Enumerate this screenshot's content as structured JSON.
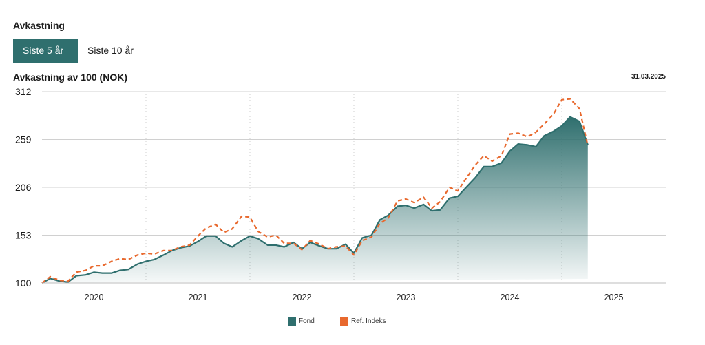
{
  "section_title": "Avkastning",
  "tabs": [
    {
      "label": "Siste 5 år",
      "active": true
    },
    {
      "label": "Siste 10 år",
      "active": false
    }
  ],
  "colors": {
    "fund": "#2f6f6e",
    "index": "#e8692e",
    "grid": "#d0d0d0"
  },
  "chart_data": {
    "type": "area",
    "title": "Avkastning av 100 (NOK)",
    "date": "31.03.2025",
    "ylim": [
      100,
      312
    ],
    "yticks": [
      "100",
      "153",
      "206",
      "259",
      "312"
    ],
    "xticks": [
      "2020",
      "2021",
      "2022",
      "2023",
      "2024",
      "2025"
    ],
    "xlim": [
      2019.5,
      2025.5
    ],
    "grid": "horizontal solid, vertical dotted",
    "legend_position": "bottom-center",
    "series": [
      {
        "name": "Fond",
        "style": "filled area, solid line",
        "x": [
          2019.5,
          2019.58,
          2019.67,
          2019.75,
          2019.83,
          2019.92,
          2020.0,
          2020.08,
          2020.17,
          2020.25,
          2020.33,
          2020.42,
          2020.5,
          2020.58,
          2020.67,
          2020.75,
          2020.83,
          2020.92,
          2021.0,
          2021.08,
          2021.17,
          2021.25,
          2021.33,
          2021.42,
          2021.5,
          2021.58,
          2021.67,
          2021.75,
          2021.83,
          2021.92,
          2022.0,
          2022.08,
          2022.17,
          2022.25,
          2022.33,
          2022.42,
          2022.5,
          2022.58,
          2022.67,
          2022.75,
          2022.83,
          2022.92,
          2023.0,
          2023.08,
          2023.17,
          2023.25,
          2023.33,
          2023.42,
          2023.5,
          2023.58,
          2023.67,
          2023.75,
          2023.83,
          2023.92,
          2024.0,
          2024.08,
          2024.17,
          2024.25,
          2024.33,
          2024.42,
          2024.5,
          2024.58,
          2024.67,
          2024.75
        ],
        "values": [
          100,
          105,
          102,
          101,
          108,
          109,
          112,
          111,
          111,
          114,
          115,
          121,
          124,
          126,
          131,
          136,
          139,
          141,
          146,
          152,
          152,
          144,
          140,
          147,
          152,
          149,
          142,
          142,
          140,
          145,
          138,
          145,
          141,
          138,
          138,
          143,
          133,
          150,
          153,
          170,
          175,
          185,
          186,
          183,
          187,
          180,
          181,
          194,
          196,
          206,
          217,
          229,
          229,
          233,
          246,
          254,
          253,
          251,
          263,
          268,
          274,
          284,
          279,
          253
        ]
      },
      {
        "name": "Ref. Indeks",
        "style": "dashed line",
        "x": [
          2019.5,
          2019.58,
          2019.67,
          2019.75,
          2019.83,
          2019.92,
          2020.0,
          2020.08,
          2020.17,
          2020.25,
          2020.33,
          2020.42,
          2020.5,
          2020.58,
          2020.67,
          2020.75,
          2020.83,
          2020.92,
          2021.0,
          2021.08,
          2021.17,
          2021.25,
          2021.33,
          2021.42,
          2021.5,
          2021.58,
          2021.67,
          2021.75,
          2021.83,
          2021.92,
          2022.0,
          2022.08,
          2022.17,
          2022.25,
          2022.33,
          2022.42,
          2022.5,
          2022.58,
          2022.67,
          2022.75,
          2022.83,
          2022.92,
          2023.0,
          2023.08,
          2023.17,
          2023.25,
          2023.33,
          2023.42,
          2023.5,
          2023.58,
          2023.67,
          2023.75,
          2023.83,
          2023.92,
          2024.0,
          2024.08,
          2024.17,
          2024.25,
          2024.33,
          2024.42,
          2024.5,
          2024.58,
          2024.67,
          2024.75
        ],
        "values": [
          100,
          107,
          103,
          102,
          112,
          114,
          119,
          119,
          124,
          127,
          126,
          131,
          133,
          132,
          136,
          136,
          140,
          142,
          152,
          161,
          165,
          156,
          160,
          174,
          173,
          157,
          151,
          153,
          144,
          144,
          137,
          147,
          143,
          138,
          140,
          141,
          131,
          147,
          151,
          166,
          172,
          191,
          193,
          189,
          195,
          183,
          190,
          206,
          202,
          216,
          231,
          241,
          235,
          241,
          265,
          266,
          262,
          267,
          276,
          287,
          303,
          304,
          293,
          252
        ]
      }
    ]
  }
}
